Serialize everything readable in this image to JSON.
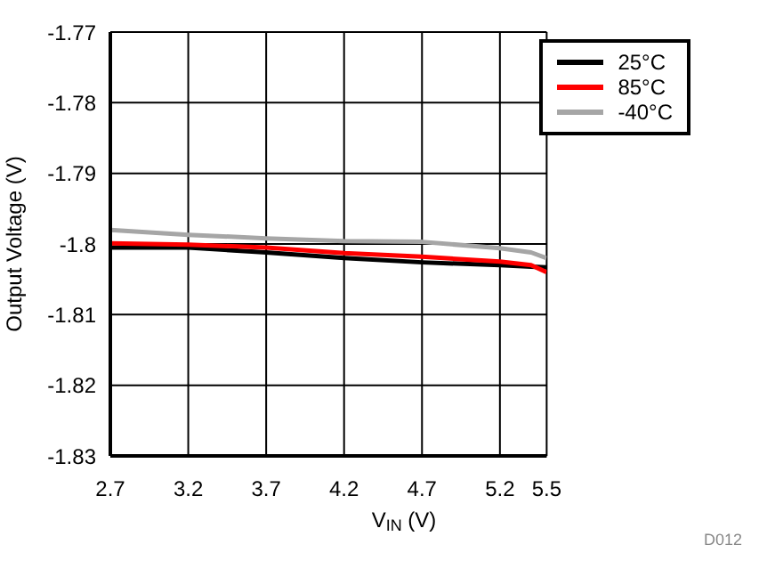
{
  "chart_data": {
    "type": "line",
    "xlabel": "V$_{IN}$ (V)",
    "ylabel": "Output Voltage (V)",
    "annotations": [
      "D012"
    ],
    "x": [
      2.7,
      3.2,
      3.7,
      4.2,
      4.7,
      5.2,
      5.4,
      5.5
    ],
    "series": [
      {
        "name": "25°C",
        "color": "#000000",
        "values": [
          -1.8005,
          -1.8005,
          -1.8012,
          -1.802,
          -1.8026,
          -1.803,
          -1.8032,
          -1.8033
        ]
      },
      {
        "name": "85°C",
        "color": "#ff0000",
        "values": [
          -1.7999,
          -1.8001,
          -1.8005,
          -1.8013,
          -1.8018,
          -1.8025,
          -1.803,
          -1.804
        ]
      },
      {
        "name": "-40°C",
        "color": "#a6a6a6",
        "values": [
          -1.798,
          -1.7987,
          -1.7992,
          -1.7996,
          -1.7997,
          -1.8006,
          -1.8012,
          -1.802
        ]
      }
    ],
    "xlim": [
      2.7,
      5.5
    ],
    "xticks": [
      2.7,
      3.2,
      3.7,
      4.2,
      4.7,
      5.2,
      5.5
    ],
    "ylim": [
      -1.83,
      -1.77
    ],
    "yticks": [
      -1.83,
      -1.82,
      -1.81,
      -1.8,
      -1.79,
      -1.78,
      -1.77
    ],
    "grid": true,
    "legend": "top right",
    "marker": "none",
    "line_style": "solid"
  }
}
